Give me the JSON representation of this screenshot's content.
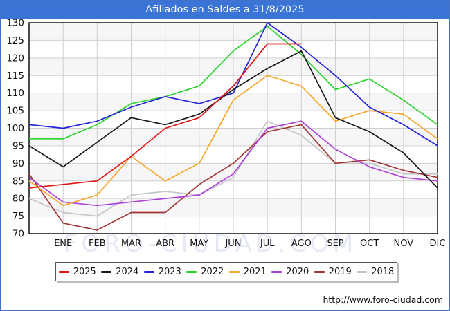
{
  "window": {
    "title": "Afiliados en Saldes a 31/8/2025"
  },
  "watermark": "FORO-CIUDAD.COM",
  "footer": {
    "url": "http://www.foro-ciudad.com"
  },
  "chart_data": {
    "type": "line",
    "title": "Afiliados en Saldes a 31/8/2025",
    "xlabel": "",
    "ylabel": "",
    "ylim": [
      70,
      130
    ],
    "y_tick_step": 5,
    "grid": true,
    "legend_position": "bottom",
    "x_tick_labels": [
      "ENE",
      "FEB",
      "MAR",
      "ABR",
      "MAY",
      "JUN",
      "JUL",
      "AGO",
      "SEP",
      "OCT",
      "NOV",
      "DIC"
    ],
    "x_layout_note": "13 x-slots: index 0 sits on the left axis edge (December of previous year), indices 1-12 align with the ENE-DIC month ticks; 2025 series ends at AGO",
    "series": [
      {
        "name": "2025",
        "color": "#e01616",
        "values": [
          83,
          84,
          85,
          92,
          100,
          103,
          112,
          124,
          124
        ]
      },
      {
        "name": "2024",
        "color": "#181818",
        "values": [
          95,
          89,
          96,
          103,
          101,
          104,
          111,
          117,
          122,
          103,
          99,
          93,
          83
        ]
      },
      {
        "name": "2023",
        "color": "#2424d6",
        "values": [
          101,
          100,
          102,
          106,
          109,
          107,
          110,
          130,
          123,
          115,
          106,
          101,
          95
        ]
      },
      {
        "name": "2022",
        "color": "#2bd32b",
        "values": [
          97,
          97,
          101,
          107,
          109,
          112,
          122,
          129,
          121,
          111,
          114,
          108,
          101
        ]
      },
      {
        "name": "2021",
        "color": "#f6a62a",
        "values": [
          85,
          78,
          81,
          92,
          85,
          90,
          108,
          115,
          112,
          102,
          105,
          104,
          97
        ]
      },
      {
        "name": "2020",
        "color": "#ac40d8",
        "values": [
          86,
          79,
          78,
          79,
          80,
          81,
          87,
          100,
          102,
          94,
          89,
          86,
          85
        ]
      },
      {
        "name": "2019",
        "color": "#a23434",
        "values": [
          87,
          73,
          71,
          76,
          76,
          84,
          90,
          99,
          101,
          90,
          91,
          88,
          86
        ]
      },
      {
        "name": "2018",
        "color": "#c6c6c6",
        "values": [
          80,
          76,
          75,
          81,
          82,
          81,
          86,
          102,
          98,
          90,
          90,
          87,
          87
        ]
      }
    ]
  }
}
